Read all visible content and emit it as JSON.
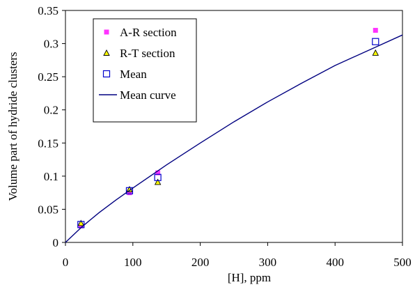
{
  "chart_data": {
    "type": "scatter",
    "xlabel": "[H], ppm",
    "ylabel": "Volume part of hydride clusters",
    "xlim": [
      0,
      500
    ],
    "ylim": [
      0,
      0.35
    ],
    "x_ticks": [
      0,
      100,
      200,
      300,
      400,
      500
    ],
    "x_tick_labels": [
      "0",
      "100",
      "200",
      "300",
      "400",
      "500"
    ],
    "y_ticks": [
      0,
      0.05,
      0.1,
      0.15,
      0.2,
      0.25,
      0.3,
      0.35
    ],
    "y_tick_labels": [
      "0",
      "0.05",
      "0.1",
      "0.15",
      "0.2",
      "0.25",
      "0.3",
      "0.35"
    ],
    "grid": false,
    "legend_position": "top-left",
    "series": [
      {
        "name": "A-R section",
        "marker": "filled-square",
        "color": "#ff33ff",
        "x": [
          23,
          95,
          137,
          460
        ],
        "y": [
          0.025,
          0.075,
          0.105,
          0.32
        ]
      },
      {
        "name": "R-T section",
        "marker": "triangle",
        "color": "#ffff00",
        "edge_color": "#000000",
        "x": [
          23,
          95,
          137,
          460
        ],
        "y": [
          0.029,
          0.08,
          0.091,
          0.286
        ]
      },
      {
        "name": "Mean",
        "marker": "open-square",
        "color": "#0000cc",
        "x": [
          23,
          95,
          137,
          460
        ],
        "y": [
          0.027,
          0.078,
          0.098,
          0.303
        ]
      },
      {
        "name": "Mean curve",
        "type": "line",
        "color": "#000080",
        "x": [
          0,
          25,
          50,
          75,
          100,
          150,
          200,
          250,
          300,
          350,
          400,
          450,
          500
        ],
        "y": [
          0,
          0.024,
          0.045,
          0.064,
          0.082,
          0.117,
          0.15,
          0.182,
          0.212,
          0.24,
          0.267,
          0.29,
          0.313
        ]
      }
    ]
  }
}
